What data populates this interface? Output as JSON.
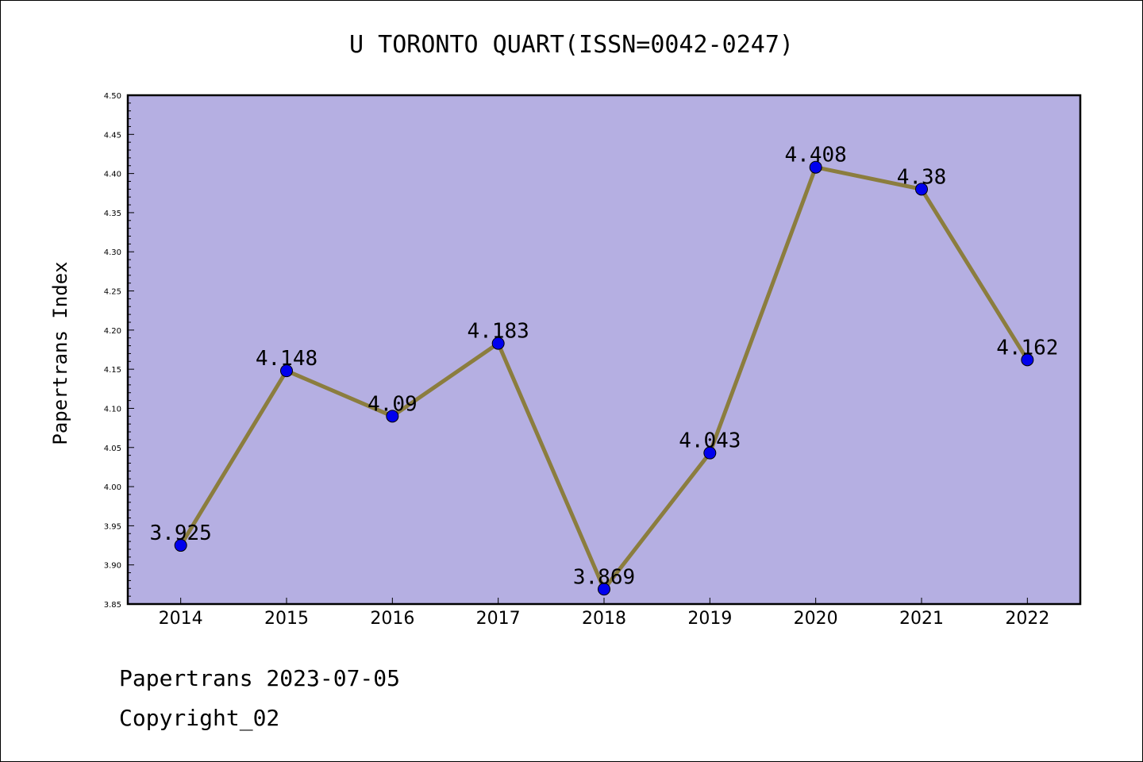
{
  "chart_data": {
    "type": "line",
    "title": "U TORONTO QUART(ISSN=0042-0247)",
    "ylabel": "Papertrans Index",
    "xlabel": "",
    "categories": [
      "2014",
      "2015",
      "2016",
      "2017",
      "2018",
      "2019",
      "2020",
      "2021",
      "2022"
    ],
    "series": [
      {
        "values": [
          3.925,
          4.148,
          4.09,
          4.183,
          3.869,
          4.043,
          4.408,
          4.38,
          4.162
        ],
        "labels": [
          "3.925",
          "4.148",
          "4.09",
          "4.183",
          "3.869",
          "4.043",
          "4.408",
          "4.38",
          "4.162"
        ]
      }
    ],
    "ylim": [
      3.85,
      4.5
    ],
    "yticks": [
      "3.85",
      "3.90",
      "3.95",
      "4.00",
      "4.05",
      "4.10",
      "4.15",
      "4.20",
      "4.25",
      "4.30",
      "4.35",
      "4.40",
      "4.45",
      "4.50"
    ],
    "grid": false,
    "colors": {
      "plot_background": "#b5afe2",
      "line": "#8b7d3e",
      "marker": "#0000ee"
    }
  },
  "footer": {
    "line1": "Papertrans 2023-07-05",
    "line2": "Copyright_02"
  }
}
